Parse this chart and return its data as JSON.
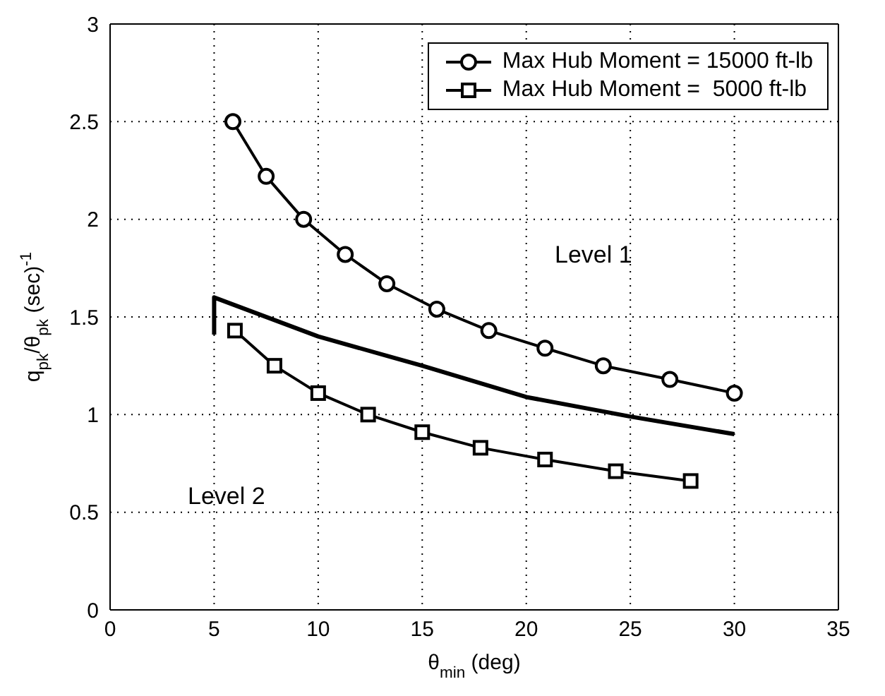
{
  "chart_data": {
    "type": "line",
    "xlabel": "θ$_{min}$ (deg)",
    "ylabel": "q$_{pk}$/θ$_{pk}$ (sec)$^{-1}$",
    "xlim": [
      0,
      35
    ],
    "xticks": [
      0,
      5,
      10,
      15,
      20,
      25,
      30,
      35
    ],
    "ylim": [
      0,
      3
    ],
    "yticks": [
      0,
      0.5,
      1,
      1.5,
      2,
      2.5,
      3
    ],
    "grid": true,
    "legend": "top right",
    "line_style": "solid",
    "annotations": [
      "Level 1",
      "Level 2"
    ],
    "series": [
      {
        "name": "Max Hub Moment = 15000 ft-lb",
        "color": "#000000",
        "marker": "circle",
        "x": [
          5.9,
          7.5,
          9.3,
          11.3,
          13.3,
          15.7,
          18.2,
          20.9,
          23.7,
          26.9,
          30
        ],
        "values": [
          2.5,
          2.22,
          2.0,
          1.82,
          1.67,
          1.54,
          1.43,
          1.34,
          1.25,
          1.18,
          1.11
        ]
      },
      {
        "name": "Max Hub Moment =  5000 ft-lb",
        "color": "#000000",
        "marker": "square",
        "x": [
          6,
          7.9,
          10,
          12.4,
          15,
          17.8,
          20.9,
          24.3,
          27.9
        ],
        "values": [
          1.43,
          1.25,
          1.11,
          1.0,
          0.91,
          0.83,
          0.77,
          0.71,
          0.66
        ]
      },
      {
        "color": "#000000",
        "marker": "none",
        "x": [
          5,
          5,
          10,
          15,
          20,
          25,
          30
        ],
        "values": [
          1.41,
          1.6,
          1.4,
          1.25,
          1.09,
          0.99,
          0.9
        ]
      }
    ]
  }
}
